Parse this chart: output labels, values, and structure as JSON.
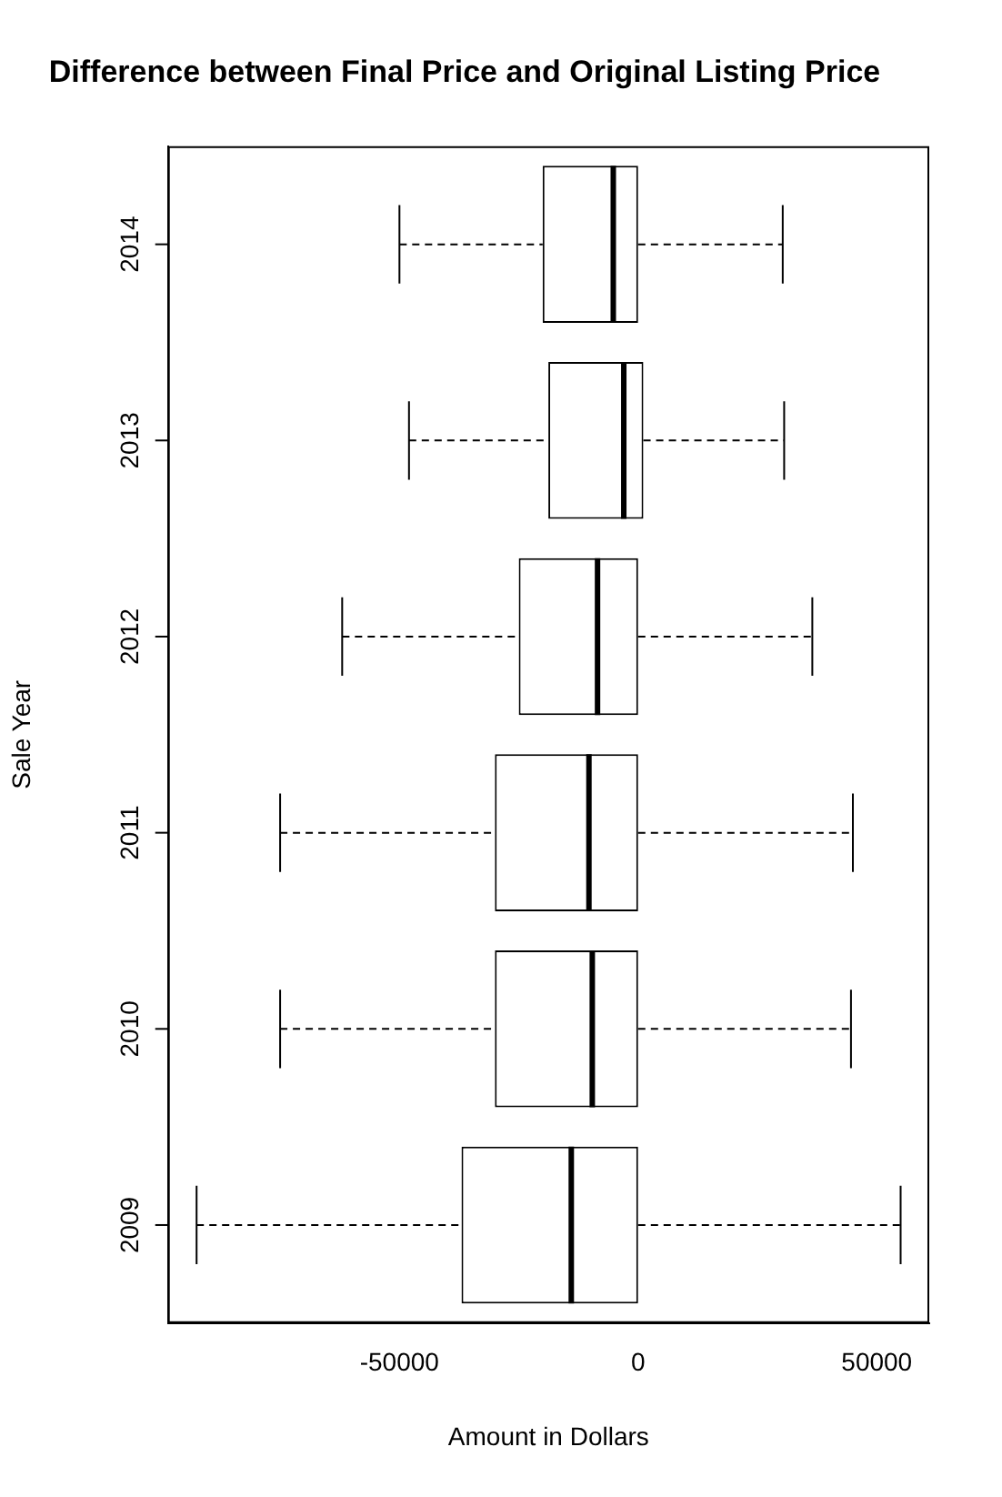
{
  "chart_data": {
    "type": "box",
    "orientation": "horizontal",
    "title": "Difference between Final Price and Original Listing Price",
    "xlabel": "Amount in Dollars",
    "ylabel": "Sale Year",
    "categories": [
      "2014",
      "2013",
      "2012",
      "2011",
      "2010",
      "2009"
    ],
    "boxes": [
      {
        "low": -50000,
        "q1": -20000,
        "median": -5200,
        "q3": 0,
        "high": 30300
      },
      {
        "low": -48000,
        "q1": -18800,
        "median": -3000,
        "q3": 1100,
        "high": 30600
      },
      {
        "low": -62000,
        "q1": -25000,
        "median": -8500,
        "q3": 0,
        "high": 36500
      },
      {
        "low": -75000,
        "q1": -30000,
        "median": -10300,
        "q3": 0,
        "high": 45000
      },
      {
        "low": -75000,
        "q1": -30000,
        "median": -9600,
        "q3": 0,
        "high": 44600
      },
      {
        "low": -92500,
        "q1": -37000,
        "median": -14000,
        "q3": 0,
        "high": 55000
      }
    ],
    "xlim": [
      -98500,
      61000
    ],
    "xticks": [
      -50000,
      0,
      50000
    ]
  }
}
